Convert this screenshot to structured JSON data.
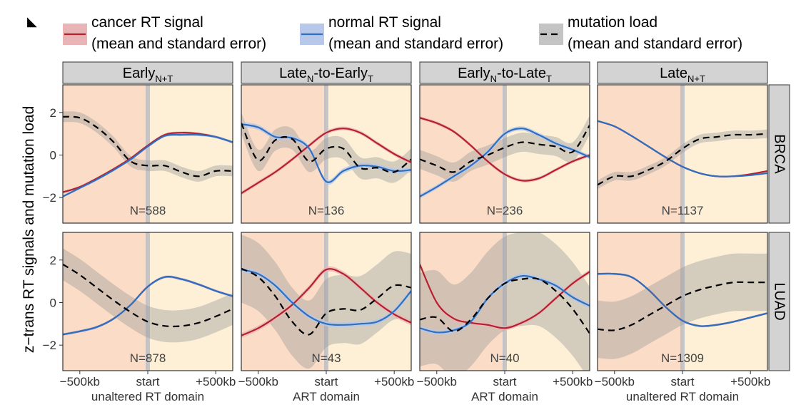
{
  "panel_tag": "◣",
  "legend": [
    {
      "line1": "cancer RT signal",
      "line2": "(mean and standard error)",
      "color": "#b5202f",
      "fill": "#e8b4b6",
      "dash": false
    },
    {
      "line1": "normal RT signal",
      "line2": "(mean and standard error)",
      "color": "#2e6fc0",
      "fill": "#b7c8ea",
      "dash": false
    },
    {
      "line1": "mutation load",
      "line2": "(mean and standard error)",
      "color": "#000000",
      "fill": "#c4c4c4",
      "dash": true
    }
  ],
  "y_axis_label": "z−trans RT signals and mutation load",
  "y_ticks": [
    "2",
    "0",
    "−2"
  ],
  "x_ticks": [
    "−500kb",
    "start",
    "+500kb"
  ],
  "colors": {
    "left_zone": "#fbdcc6",
    "right_zone": "#fef0d6",
    "strip": "#d3d3d3",
    "start_line": "#b8bcc6"
  },
  "col_strips": [
    {
      "main": "Early",
      "sub": "N+T",
      "rest": "",
      "rest_sub": ""
    },
    {
      "main": "Late",
      "sub": "N",
      "rest": "-to-Early",
      "rest_sub": "T"
    },
    {
      "main": "Early",
      "sub": "N",
      "rest": "-to-Late",
      "rest_sub": "T"
    },
    {
      "main": "Late",
      "sub": "N+T",
      "rest": "",
      "rest_sub": ""
    }
  ],
  "row_strips": [
    "BRCA",
    "LUAD"
  ],
  "col_xlabels": [
    "unaltered RT domain",
    "ART domain",
    "ART domain",
    "unaltered RT domain"
  ],
  "chart_data": {
    "type": "line",
    "title": "",
    "xlabel": "",
    "ylabel": "z−trans RT signals and mutation load",
    "x": [
      -500,
      -400,
      -300,
      -200,
      -100,
      0,
      100,
      200,
      300,
      400,
      500
    ],
    "x_unit": "kb relative to domain start",
    "ylim": [
      -3.2,
      3.3
    ],
    "grid": false,
    "legend_position": "top",
    "panels": [
      {
        "row": "BRCA",
        "col": "Early N+T",
        "n_label": "N=588",
        "cancer": [
          -1.75,
          -1.5,
          -1.1,
          -0.65,
          -0.15,
          0.45,
          0.95,
          1.05,
          1.0,
          0.85,
          0.6
        ],
        "cancer_se": 0.06,
        "normal": [
          -1.95,
          -1.55,
          -1.15,
          -0.7,
          -0.2,
          0.4,
          0.9,
          0.95,
          0.95,
          0.85,
          0.6
        ],
        "normal_se": 0.06,
        "mutation": [
          1.8,
          1.75,
          1.3,
          0.6,
          -0.3,
          -0.5,
          -0.5,
          -0.8,
          -1.0,
          -0.75,
          -0.75
        ],
        "mutation_se": 0.25
      },
      {
        "row": "BRCA",
        "col": "Late N-to-Early T",
        "n_label": "N=136",
        "cancer": [
          -1.8,
          -1.3,
          -0.8,
          -0.2,
          0.45,
          1.05,
          1.25,
          1.05,
          0.55,
          0.05,
          -0.35
        ],
        "cancer_se": 0.09,
        "normal": [
          1.45,
          1.3,
          0.85,
          0.8,
          0.3,
          -1.25,
          -0.75,
          -0.5,
          -0.55,
          -0.75,
          -0.7
        ],
        "normal_se": 0.12,
        "mutation": [
          1.5,
          -0.25,
          0.7,
          0.75,
          -0.3,
          0.3,
          0.3,
          -0.6,
          -0.6,
          -0.8,
          -0.2
        ],
        "mutation_se": 0.5
      },
      {
        "row": "BRCA",
        "col": "Early N-to-Late T",
        "n_label": "N=236",
        "cancer": [
          1.75,
          1.5,
          1.1,
          0.45,
          -0.3,
          -0.9,
          -1.2,
          -1.1,
          -0.7,
          -0.3,
          0.0
        ],
        "cancer_se": 0.08,
        "normal": [
          -1.95,
          -1.5,
          -1.0,
          -0.5,
          0.15,
          1.0,
          1.25,
          0.95,
          0.55,
          0.25,
          -0.1
        ],
        "normal_se": 0.1,
        "mutation": [
          -0.2,
          -0.5,
          -0.8,
          -0.3,
          0.0,
          0.35,
          0.6,
          0.5,
          0.4,
          0.15,
          1.4
        ],
        "mutation_se": 0.45
      },
      {
        "row": "BRCA",
        "col": "Late N+T",
        "n_label": "N=1137",
        "cancer": [
          1.6,
          1.35,
          0.9,
          0.4,
          -0.1,
          -0.55,
          -0.85,
          -1.0,
          -1.0,
          -0.9,
          -0.75
        ],
        "cancer_se": 0.04,
        "normal": [
          1.6,
          1.35,
          0.9,
          0.4,
          -0.1,
          -0.55,
          -0.85,
          -1.0,
          -1.0,
          -0.95,
          -0.85
        ],
        "normal_se": 0.04,
        "mutation": [
          -1.4,
          -1.0,
          -1.0,
          -0.7,
          -0.3,
          0.3,
          0.75,
          0.85,
          0.95,
          0.95,
          1.0
        ],
        "mutation_se": 0.2
      },
      {
        "row": "LUAD",
        "col": "Early N+T",
        "n_label": "N=878",
        "cancer": [
          -1.5,
          -1.35,
          -1.15,
          -0.75,
          -0.1,
          0.75,
          1.2,
          1.1,
          0.85,
          0.55,
          0.3
        ],
        "cancer_se": 0.06,
        "normal": [
          -1.5,
          -1.35,
          -1.15,
          -0.75,
          -0.1,
          0.75,
          1.2,
          1.1,
          0.85,
          0.55,
          0.3
        ],
        "normal_se": 0.06,
        "mutation": [
          1.8,
          1.3,
          0.7,
          0.1,
          -0.45,
          -0.9,
          -1.1,
          -1.1,
          -0.95,
          -0.65,
          -0.3
        ],
        "mutation_se": 0.75
      },
      {
        "row": "LUAD",
        "col": "Late N-to-Early T",
        "n_label": "N=43",
        "cancer": [
          -1.55,
          -1.2,
          -0.7,
          -0.1,
          0.7,
          1.55,
          1.35,
          0.7,
          0.0,
          -0.55,
          -0.95
        ],
        "cancer_se": 0.12,
        "normal": [
          1.55,
          1.35,
          0.8,
          0.0,
          -0.65,
          -1.0,
          -1.05,
          -1.0,
          -0.9,
          -0.4,
          0.55
        ],
        "normal_se": 0.12,
        "mutation": [
          1.6,
          1.2,
          0.3,
          -0.9,
          -1.5,
          -0.5,
          -0.3,
          -0.35,
          0.2,
          0.8,
          0.7
        ],
        "mutation_se": 1.6
      },
      {
        "row": "LUAD",
        "col": "Early N-to-Late T",
        "n_label": "N=40",
        "cancer": [
          1.8,
          0.0,
          -0.75,
          -0.95,
          -1.05,
          -1.2,
          -0.95,
          -0.5,
          0.2,
          0.9,
          1.45
        ],
        "cancer_se": 0.1,
        "normal": [
          -1.2,
          -1.4,
          -1.3,
          -0.9,
          0.2,
          0.9,
          1.25,
          1.1,
          0.8,
          0.25,
          -0.15
        ],
        "normal_se": 0.12,
        "mutation": [
          -0.8,
          -0.7,
          -1.35,
          -0.8,
          0.2,
          0.9,
          1.1,
          1.1,
          0.55,
          -0.3,
          -1.45
        ],
        "mutation_se": 2.2
      },
      {
        "row": "LUAD",
        "col": "Late N+T",
        "n_label": "N=1309",
        "cancer": [
          1.35,
          1.35,
          1.2,
          0.6,
          -0.2,
          -0.85,
          -1.1,
          -1.05,
          -0.9,
          -0.7,
          -0.5
        ],
        "cancer_se": 0.05,
        "normal": [
          1.35,
          1.35,
          1.2,
          0.6,
          -0.2,
          -0.85,
          -1.1,
          -1.05,
          -0.9,
          -0.7,
          -0.5
        ],
        "normal_se": 0.05,
        "mutation": [
          -1.25,
          -1.3,
          -1.05,
          -0.6,
          -0.15,
          0.3,
          0.6,
          0.8,
          0.95,
          0.95,
          0.95
        ],
        "mutation_se": 1.35
      }
    ]
  }
}
